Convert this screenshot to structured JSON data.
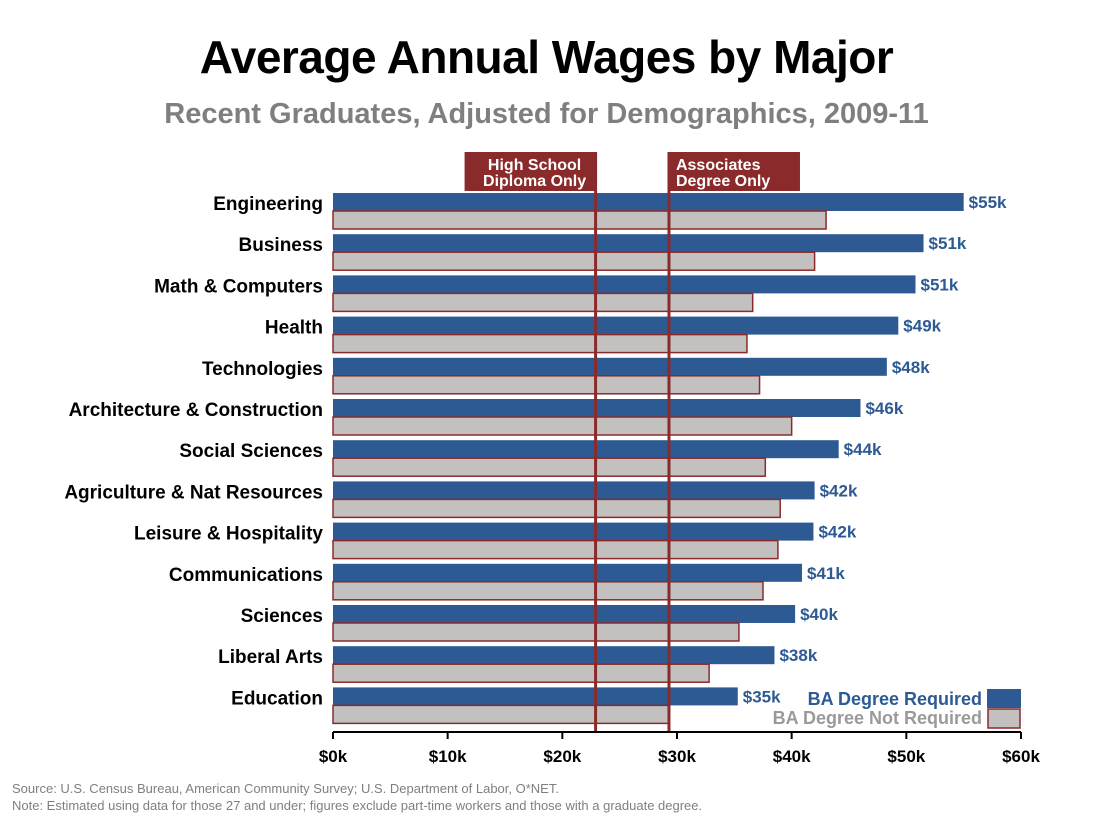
{
  "chart_data": {
    "type": "bar",
    "orientation": "horizontal",
    "title": "Average Annual Wages by Major",
    "subtitle": "Recent Graduates, Adjusted for Demographics, 2009-11",
    "categories": [
      "Engineering",
      "Business",
      "Math & Computers",
      "Health",
      "Technologies",
      "Architecture & Construction",
      "Social Sciences",
      "Agriculture & Nat Resources",
      "Leisure & Hospitality",
      "Communications",
      "Sciences",
      "Liberal Arts",
      "Education"
    ],
    "series": [
      {
        "name": "BA Degree Required",
        "color": "#2d5a93",
        "values": [
          55,
          51.5,
          50.8,
          49.3,
          48.3,
          46,
          44.1,
          42,
          41.9,
          40.9,
          40.3,
          38.5,
          35.3
        ],
        "labels": [
          "$55k",
          "$51k",
          "$51k",
          "$49k",
          "$48k",
          "$46k",
          "$44k",
          "$42k",
          "$42k",
          "$41k",
          "$40k",
          "$38k",
          "$35k"
        ]
      },
      {
        "name": "BA Degree Not Required",
        "color": "#c3c0c0",
        "border": "#8b2a2a",
        "values": [
          43,
          42,
          36.6,
          36.1,
          37.2,
          40,
          37.7,
          39,
          38.8,
          37.5,
          35.4,
          32.8,
          29.3
        ]
      }
    ],
    "reference_lines": [
      {
        "label": "High School Diploma Only",
        "lines": [
          "High School",
          "Diploma Only"
        ],
        "value": 22.9
      },
      {
        "label": "Associates Degree Only",
        "lines": [
          "Associates",
          "Degree Only"
        ],
        "value": 29.3
      }
    ],
    "xlim": [
      0,
      60
    ],
    "xticks": [
      0,
      10,
      20,
      30,
      40,
      50,
      60
    ],
    "xtick_labels": [
      "$0k",
      "$10k",
      "$20k",
      "$30k",
      "$40k",
      "$50k",
      "$60k"
    ],
    "legend_position": "bottom-right",
    "grid": false,
    "reference_line_color": "#8b2a2a",
    "legend_text_colors": [
      "#2d5a93",
      "#9a9a9a"
    ]
  },
  "footnote": {
    "source": "Source: U.S. Census Bureau, American Community Survey; U.S. Department of Labor, O*NET.",
    "note": "Note: Estimated using data for those 27 and under; figures exclude part-time workers and those with a graduate degree."
  }
}
